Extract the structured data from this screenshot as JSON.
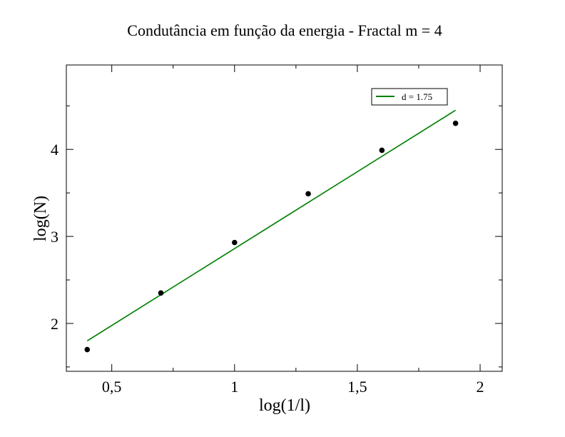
{
  "chart_data": {
    "type": "scatter",
    "title": "Condutância em função da energia - Fractal m = 4",
    "xlabel": "log(1/l)",
    "ylabel": "log(N)",
    "xlim": [
      0.315,
      2.09
    ],
    "ylim": [
      1.45,
      4.97
    ],
    "x_ticks": [
      0.5,
      1,
      1.5,
      2
    ],
    "x_tick_labels": [
      "0,5",
      "1",
      "1,5",
      "2"
    ],
    "y_ticks": [
      2,
      3,
      4
    ],
    "y_tick_labels": [
      "2",
      "3",
      "4"
    ],
    "grid": false,
    "legend_position": "top-right",
    "series": [
      {
        "kind": "points",
        "x": [
          0.4,
          0.7,
          1.0,
          1.3,
          1.6,
          1.9
        ],
        "y": [
          1.7,
          2.35,
          2.93,
          3.49,
          3.99,
          4.3
        ],
        "color": "#000000"
      },
      {
        "kind": "fit-line",
        "name": "d = 1.75",
        "x": [
          0.4,
          1.9
        ],
        "y": [
          1.8,
          4.45
        ],
        "color": "#008000"
      }
    ]
  }
}
